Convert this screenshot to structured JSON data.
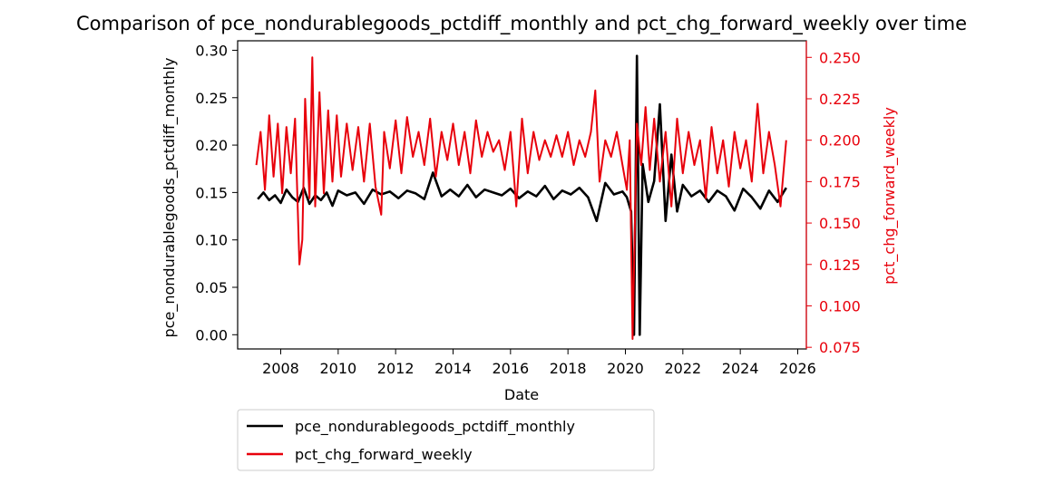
{
  "chart_data": {
    "type": "line",
    "title": "Comparison of pce_nondurablegoods_pctdiff_monthly and pct_chg_forward_weekly over time",
    "xlabel": "Date",
    "ylabel_left": "pce_nondurablegoods_pctdiff_monthly",
    "ylabel_right": "pct_chg_forward_weekly",
    "x_range": [
      2006.5,
      2026.3
    ],
    "x_ticks": [
      "2008",
      "2010",
      "2012",
      "2014",
      "2016",
      "2018",
      "2020",
      "2022",
      "2024",
      "2026"
    ],
    "ylim_left": [
      -0.015,
      0.31
    ],
    "ylim_right": [
      0.074,
      0.26
    ],
    "y_ticks_left": [
      "0.00",
      "0.05",
      "0.10",
      "0.15",
      "0.20",
      "0.25",
      "0.30"
    ],
    "y_ticks_right": [
      "0.075",
      "0.100",
      "0.125",
      "0.150",
      "0.175",
      "0.200",
      "0.225",
      "0.250"
    ],
    "legend_position": "below-left",
    "grid": false,
    "series": [
      {
        "name": "pce_nondurablegoods_pctdiff_monthly",
        "axis": "left",
        "color": "#000000",
        "x": [
          2007.2,
          2007.4,
          2007.6,
          2007.8,
          2008.0,
          2008.2,
          2008.4,
          2008.6,
          2008.8,
          2009.0,
          2009.2,
          2009.4,
          2009.6,
          2009.8,
          2010.0,
          2010.3,
          2010.6,
          2010.9,
          2011.2,
          2011.5,
          2011.8,
          2012.1,
          2012.4,
          2012.7,
          2013.0,
          2013.3,
          2013.6,
          2013.9,
          2014.2,
          2014.5,
          2014.8,
          2015.1,
          2015.4,
          2015.7,
          2016.0,
          2016.3,
          2016.6,
          2016.9,
          2017.2,
          2017.5,
          2017.8,
          2018.1,
          2018.4,
          2018.7,
          2019.0,
          2019.3,
          2019.6,
          2019.9,
          2020.05,
          2020.2,
          2020.3,
          2020.4,
          2020.5,
          2020.6,
          2020.8,
          2021.0,
          2021.2,
          2021.4,
          2021.6,
          2021.8,
          2022.0,
          2022.3,
          2022.6,
          2022.9,
          2023.2,
          2023.5,
          2023.8,
          2024.1,
          2024.4,
          2024.7,
          2025.0,
          2025.3,
          2025.6
        ],
        "values": [
          0.143,
          0.15,
          0.142,
          0.147,
          0.139,
          0.153,
          0.145,
          0.14,
          0.155,
          0.138,
          0.147,
          0.142,
          0.15,
          0.136,
          0.152,
          0.147,
          0.15,
          0.138,
          0.153,
          0.148,
          0.151,
          0.144,
          0.152,
          0.149,
          0.143,
          0.171,
          0.146,
          0.153,
          0.146,
          0.158,
          0.145,
          0.153,
          0.15,
          0.147,
          0.154,
          0.144,
          0.151,
          0.146,
          0.157,
          0.143,
          0.152,
          0.148,
          0.155,
          0.145,
          0.12,
          0.16,
          0.148,
          0.151,
          0.145,
          0.13,
          0.0,
          0.294,
          0.0,
          0.18,
          0.14,
          0.162,
          0.243,
          0.12,
          0.19,
          0.13,
          0.158,
          0.146,
          0.152,
          0.14,
          0.152,
          0.146,
          0.131,
          0.154,
          0.145,
          0.133,
          0.152,
          0.14,
          0.155
        ]
      },
      {
        "name": "pct_chg_forward_weekly",
        "axis": "right",
        "color": "#e8000b",
        "x": [
          2007.15,
          2007.3,
          2007.45,
          2007.6,
          2007.75,
          2007.9,
          2008.05,
          2008.2,
          2008.35,
          2008.5,
          2008.65,
          2008.75,
          2008.85,
          2009.0,
          2009.1,
          2009.2,
          2009.35,
          2009.5,
          2009.65,
          2009.8,
          2009.95,
          2010.1,
          2010.3,
          2010.5,
          2010.7,
          2010.9,
          2011.1,
          2011.3,
          2011.5,
          2011.6,
          2011.8,
          2012.0,
          2012.2,
          2012.4,
          2012.6,
          2012.8,
          2013.0,
          2013.2,
          2013.4,
          2013.6,
          2013.8,
          2014.0,
          2014.2,
          2014.4,
          2014.6,
          2014.8,
          2015.0,
          2015.2,
          2015.4,
          2015.6,
          2015.8,
          2016.0,
          2016.2,
          2016.4,
          2016.6,
          2016.8,
          2017.0,
          2017.2,
          2017.4,
          2017.6,
          2017.8,
          2018.0,
          2018.2,
          2018.4,
          2018.6,
          2018.8,
          2018.95,
          2019.1,
          2019.3,
          2019.5,
          2019.7,
          2019.9,
          2020.05,
          2020.15,
          2020.25,
          2020.4,
          2020.55,
          2020.7,
          2020.85,
          2021.0,
          2021.2,
          2021.4,
          2021.6,
          2021.8,
          2022.0,
          2022.2,
          2022.4,
          2022.6,
          2022.8,
          2023.0,
          2023.2,
          2023.4,
          2023.6,
          2023.8,
          2024.0,
          2024.2,
          2024.4,
          2024.6,
          2024.8,
          2025.0,
          2025.2,
          2025.4,
          2025.6
        ],
        "values": [
          0.185,
          0.205,
          0.17,
          0.215,
          0.178,
          0.21,
          0.168,
          0.208,
          0.18,
          0.213,
          0.125,
          0.14,
          0.225,
          0.165,
          0.25,
          0.16,
          0.229,
          0.168,
          0.218,
          0.175,
          0.215,
          0.178,
          0.21,
          0.182,
          0.208,
          0.175,
          0.21,
          0.172,
          0.155,
          0.205,
          0.183,
          0.212,
          0.18,
          0.214,
          0.19,
          0.205,
          0.185,
          0.213,
          0.178,
          0.205,
          0.188,
          0.21,
          0.185,
          0.205,
          0.18,
          0.212,
          0.19,
          0.205,
          0.193,
          0.2,
          0.182,
          0.205,
          0.16,
          0.213,
          0.18,
          0.205,
          0.188,
          0.2,
          0.19,
          0.203,
          0.19,
          0.205,
          0.185,
          0.2,
          0.19,
          0.205,
          0.23,
          0.175,
          0.2,
          0.19,
          0.205,
          0.185,
          0.17,
          0.2,
          0.08,
          0.21,
          0.185,
          0.22,
          0.182,
          0.213,
          0.175,
          0.205,
          0.16,
          0.213,
          0.18,
          0.205,
          0.185,
          0.2,
          0.165,
          0.208,
          0.18,
          0.2,
          0.172,
          0.205,
          0.183,
          0.2,
          0.175,
          0.222,
          0.18,
          0.205,
          0.185,
          0.16,
          0.2
        ]
      }
    ]
  }
}
